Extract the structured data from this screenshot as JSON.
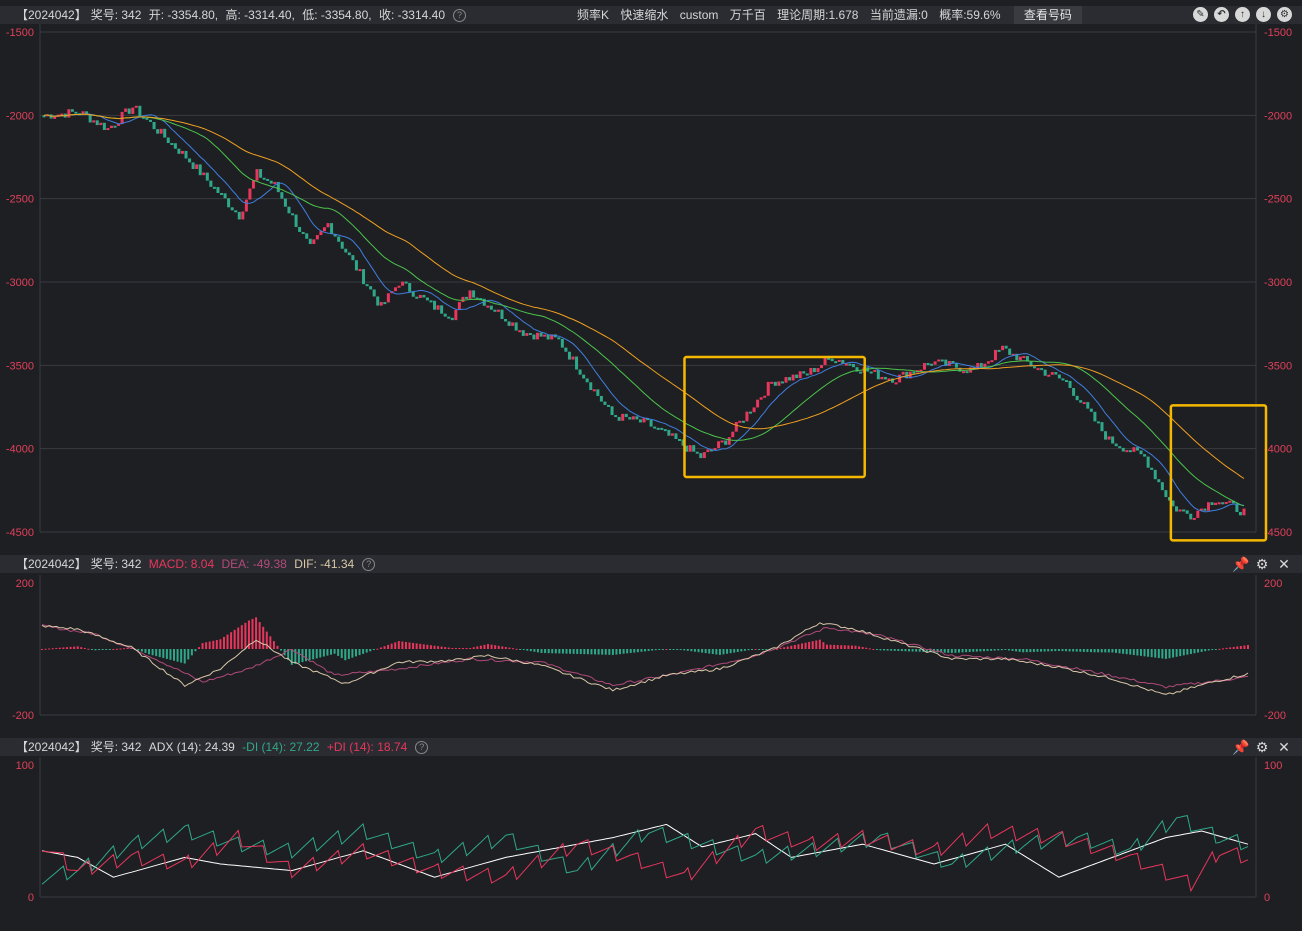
{
  "colors": {
    "bg": "#1f2024",
    "grid": "#3a3b40",
    "axis_label": "#e0405a",
    "candle_up": "#e8365c",
    "candle_down": "#2fa88a",
    "ma_blue": "#3f7fe0",
    "ma_green": "#4cc44c",
    "ma_orange": "#f0a020",
    "highlight": "#f5b800",
    "macd_pos": "#e8365c",
    "macd_neg": "#2fa88a",
    "dif_line": "#d9c7a8",
    "dea_line": "#b04a7a",
    "adx_line": "#ffffff",
    "minus_di": "#2fa88a",
    "plus_di": "#e8365c"
  },
  "main_header": {
    "code": "【2024042】",
    "issue": "奖号: 342",
    "open": "开: -3354.80,",
    "high": "高: -3314.40,",
    "low": "低: -3354.80,",
    "close": "收: -3314.40",
    "help_icon": "question-icon",
    "mode1": "频率K",
    "mode2": "快速缩水",
    "mode3": "custom",
    "mode4": "万千百",
    "period": "理论周期:1.678",
    "streak": "当前遗漏:0",
    "prob": "概率:59.6%",
    "view_button": "查看号码",
    "toolbar_icons": [
      "edit-icon",
      "undo-icon",
      "up-icon",
      "down-icon",
      "settings-icon"
    ]
  },
  "macd_header": {
    "code": "【2024042】",
    "issue": "奖号: 342",
    "macd": "MACD: 8.04",
    "dea": "DEA: -49.38",
    "dif": "DIF: -41.34",
    "icons": [
      "pin-icon",
      "settings-icon",
      "close-icon"
    ]
  },
  "adx_header": {
    "code": "【2024042】",
    "issue": "奖号: 342",
    "adx": "ADX (14): 24.39",
    "minus_di": "-DI (14): 27.22",
    "plus_di": "+DI (14): 18.74",
    "icons": [
      "pin-icon",
      "settings-icon",
      "close-icon"
    ]
  },
  "chart_data": [
    {
      "type": "candlestick",
      "title": "",
      "ylim": [
        -4500,
        -1500
      ],
      "yticks": [
        -1500,
        -2000,
        -2500,
        -3000,
        -3500,
        -4000,
        -4500
      ],
      "n_bars": 200,
      "close_path_keypoints": [
        [
          0,
          -2000
        ],
        [
          10,
          -1980
        ],
        [
          18,
          -2080
        ],
        [
          25,
          -1950
        ],
        [
          30,
          -2050
        ],
        [
          40,
          -2250
        ],
        [
          55,
          -2600
        ],
        [
          60,
          -2350
        ],
        [
          65,
          -2420
        ],
        [
          75,
          -2800
        ],
        [
          80,
          -2650
        ],
        [
          95,
          -3150
        ],
        [
          100,
          -3000
        ],
        [
          110,
          -3150
        ],
        [
          115,
          -3200
        ],
        [
          120,
          -3050
        ],
        [
          135,
          -3300
        ],
        [
          145,
          -3350
        ],
        [
          160,
          -3800
        ],
        [
          170,
          -3850
        ],
        [
          178,
          -3950
        ],
        [
          185,
          -4050
        ],
        [
          192,
          -3950
        ],
        [
          205,
          -3600
        ],
        [
          215,
          -3550
        ],
        [
          222,
          -3450
        ],
        [
          235,
          -3560
        ],
        [
          240,
          -3580
        ],
        [
          250,
          -3480
        ],
        [
          262,
          -3530
        ],
        [
          270,
          -3400
        ],
        [
          280,
          -3520
        ],
        [
          288,
          -3600
        ],
        [
          300,
          -3950
        ],
        [
          310,
          -4050
        ],
        [
          318,
          -4350
        ],
        [
          323,
          -4400
        ],
        [
          330,
          -4300
        ],
        [
          338,
          -4380
        ]
      ],
      "moving_averages": [
        "blue",
        "green",
        "orange"
      ],
      "highlight_boxes": [
        {
          "from_bar": 0.53,
          "to_bar": 0.67,
          "y_top": -3450,
          "y_bottom": -4170
        },
        {
          "from_bar": 0.93,
          "to_bar": 1.0,
          "y_top": -3740,
          "y_bottom": -4550
        }
      ]
    },
    {
      "type": "line",
      "title": "MACD",
      "ylim": [
        -200,
        200
      ],
      "yticks": [
        200,
        -200
      ],
      "series": [
        {
          "name": "DIF",
          "keypoints": [
            [
              0,
              70
            ],
            [
              10,
              60
            ],
            [
              25,
              5
            ],
            [
              40,
              -110
            ],
            [
              50,
              -60
            ],
            [
              60,
              30
            ],
            [
              70,
              -40
            ],
            [
              85,
              -105
            ],
            [
              100,
              -40
            ],
            [
              115,
              -35
            ],
            [
              125,
              -20
            ],
            [
              140,
              -50
            ],
            [
              160,
              -125
            ],
            [
              175,
              -80
            ],
            [
              190,
              -60
            ],
            [
              205,
              0
            ],
            [
              218,
              80
            ],
            [
              228,
              60
            ],
            [
              240,
              20
            ],
            [
              255,
              -30
            ],
            [
              270,
              -30
            ],
            [
              285,
              -55
            ],
            [
              300,
              -90
            ],
            [
              315,
              -140
            ],
            [
              328,
              -100
            ],
            [
              338,
              -75
            ]
          ]
        },
        {
          "name": "DEA",
          "keypoints": [
            [
              0,
              70
            ],
            [
              15,
              45
            ],
            [
              30,
              -20
            ],
            [
              45,
              -100
            ],
            [
              58,
              -60
            ],
            [
              70,
              0
            ],
            [
              82,
              -80
            ],
            [
              100,
              -60
            ],
            [
              120,
              -30
            ],
            [
              140,
              -40
            ],
            [
              160,
              -110
            ],
            [
              180,
              -70
            ],
            [
              200,
              -20
            ],
            [
              220,
              65
            ],
            [
              235,
              40
            ],
            [
              255,
              -20
            ],
            [
              275,
              -30
            ],
            [
              295,
              -70
            ],
            [
              315,
              -115
            ],
            [
              338,
              -85
            ]
          ]
        },
        {
          "name": "MACD",
          "histogram": true
        }
      ]
    },
    {
      "type": "line",
      "title": "ADX (14)",
      "ylim": [
        0,
        100
      ],
      "yticks": [
        100,
        0
      ],
      "series": [
        {
          "name": "ADX",
          "keypoints": [
            [
              0,
              35
            ],
            [
              10,
              30
            ],
            [
              20,
              15
            ],
            [
              40,
              30
            ],
            [
              50,
              25
            ],
            [
              70,
              20
            ],
            [
              90,
              35
            ],
            [
              110,
              15
            ],
            [
              130,
              30
            ],
            [
              160,
              45
            ],
            [
              175,
              55
            ],
            [
              185,
              38
            ],
            [
              200,
              48
            ],
            [
              210,
              30
            ],
            [
              230,
              40
            ],
            [
              250,
              25
            ],
            [
              270,
              40
            ],
            [
              285,
              15
            ],
            [
              300,
              30
            ],
            [
              315,
              45
            ],
            [
              325,
              50
            ],
            [
              338,
              40
            ]
          ]
        },
        {
          "name": "-DI",
          "keypoints": [
            [
              0,
              15
            ],
            [
              10,
              20
            ],
            [
              25,
              40
            ],
            [
              40,
              50
            ],
            [
              55,
              40
            ],
            [
              70,
              35
            ],
            [
              90,
              50
            ],
            [
              110,
              30
            ],
            [
              130,
              45
            ],
            [
              150,
              20
            ],
            [
              170,
              50
            ],
            [
              185,
              40
            ],
            [
              200,
              30
            ],
            [
              215,
              35
            ],
            [
              235,
              45
            ],
            [
              255,
              25
            ],
            [
              275,
              40
            ],
            [
              290,
              45
            ],
            [
              305,
              35
            ],
            [
              318,
              60
            ],
            [
              330,
              45
            ],
            [
              338,
              40
            ]
          ]
        },
        {
          "name": "+DI",
          "keypoints": [
            [
              0,
              40
            ],
            [
              10,
              20
            ],
            [
              25,
              30
            ],
            [
              40,
              25
            ],
            [
              55,
              45
            ],
            [
              70,
              20
            ],
            [
              90,
              35
            ],
            [
              110,
              20
            ],
            [
              130,
              15
            ],
            [
              150,
              40
            ],
            [
              165,
              30
            ],
            [
              180,
              15
            ],
            [
              200,
              50
            ],
            [
              215,
              40
            ],
            [
              230,
              45
            ],
            [
              250,
              35
            ],
            [
              265,
              50
            ],
            [
              285,
              45
            ],
            [
              305,
              30
            ],
            [
              322,
              10
            ],
            [
              330,
              35
            ],
            [
              338,
              30
            ]
          ]
        }
      ]
    }
  ]
}
